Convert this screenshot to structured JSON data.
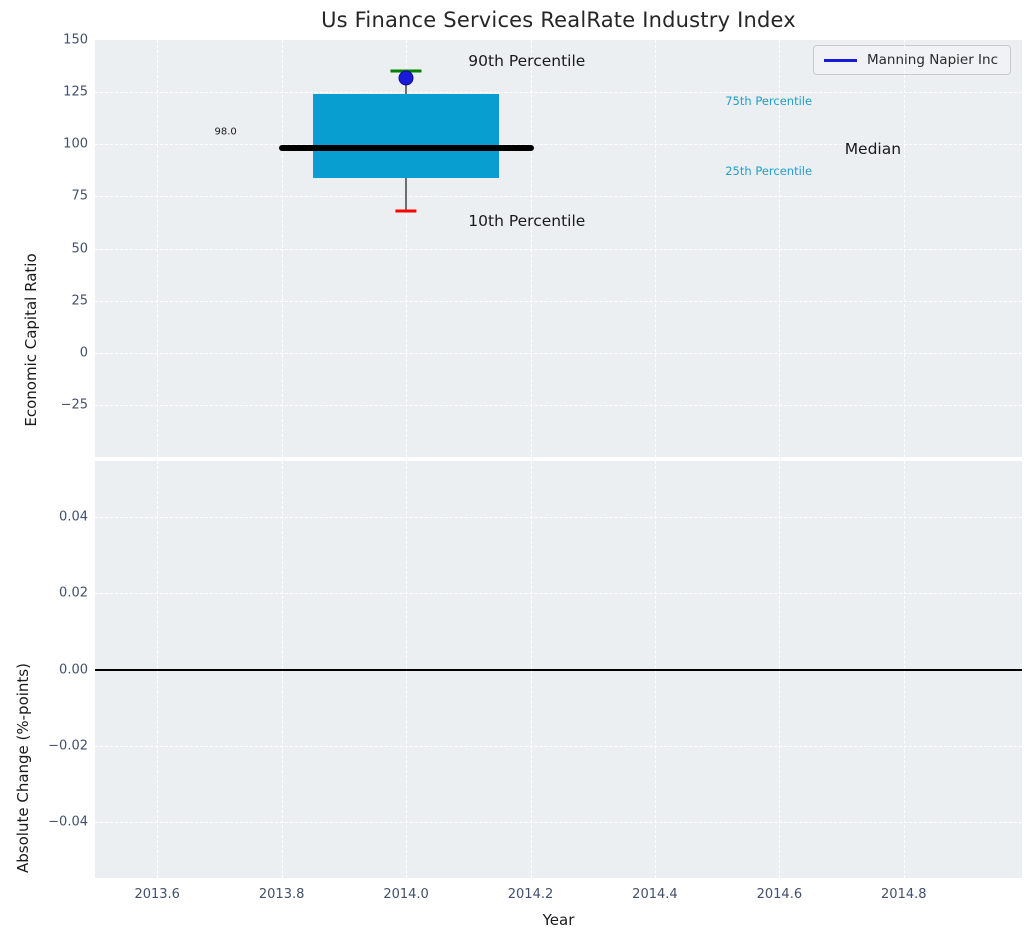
{
  "title": "Us Finance Services RealRate Industry Index",
  "legend": {
    "label": "Manning Napier Inc",
    "line_color": "#1a1ad9"
  },
  "colors": {
    "axes_background": "#eceff1",
    "grid": "#ffffff",
    "tick_text": "#42506b",
    "box_fill": "#089ecf",
    "median_line": "#000000",
    "whisker": "#6e6e6e",
    "p90_cap": "#008000",
    "p10_cap": "#ff0000",
    "company_marker": "#1a1ad9",
    "percentile_text": "#1f9dcd",
    "annotation_text": "#1a1a1a"
  },
  "chart_data": [
    {
      "type": "box-timeseries",
      "subplot": "top",
      "title": "Us Finance Services RealRate Industry Index",
      "ylabel": "Economic Capital Ratio",
      "xlabel": "",
      "grid": true,
      "legend_position": "upper right",
      "xlim": [
        2013.5,
        2014.99
      ],
      "ylim": [
        -50,
        150
      ],
      "xticks": {
        "values": [
          2013.6,
          2013.8,
          2014.0,
          2014.2,
          2014.4,
          2014.6,
          2014.8
        ],
        "labels": [
          "2013.6",
          "2013.8",
          "2014.0",
          "2014.2",
          "2014.4",
          "2014.6",
          "2014.8"
        ]
      },
      "yticks": {
        "values": [
          150,
          125,
          100,
          75,
          50,
          25,
          0,
          -25
        ],
        "labels": [
          "150",
          "125",
          "100",
          "75",
          "50",
          "25",
          "0",
          "−25"
        ]
      },
      "box": {
        "x": 2014.0,
        "p90": 135,
        "p75": 124,
        "median": 98,
        "p25": 84,
        "p10": 68,
        "box_halfwidth": 0.15,
        "median_halfwidth": 0.205,
        "p90_cap_halfwidth": 0.025,
        "p10_cap_halfwidth": 0.017
      },
      "series": [
        {
          "name": "Manning Napier Inc",
          "type": "scatter",
          "x": [
            2014.0
          ],
          "y": [
            132
          ]
        }
      ],
      "annotations": [
        {
          "text": "90th Percentile",
          "x": 2014.1,
          "y": 139.8,
          "size": 15.5,
          "color": "#1a1a1a",
          "anchor": "left"
        },
        {
          "text": "10th Percentile",
          "x": 2014.1,
          "y": 63.0,
          "size": 15.5,
          "color": "#1a1a1a",
          "anchor": "left"
        },
        {
          "text": "Median",
          "x": 2014.705,
          "y": 97.8,
          "size": 15.5,
          "color": "#1a1a1a",
          "anchor": "left"
        },
        {
          "text": "75th Percentile",
          "x": 2014.513,
          "y": 120.8,
          "size": 11.5,
          "color": "#1f9dcd",
          "anchor": "left"
        },
        {
          "text": "25th Percentile",
          "x": 2014.513,
          "y": 87.0,
          "size": 11.5,
          "color": "#1f9dcd",
          "anchor": "left"
        },
        {
          "text": "98.0",
          "x": 2013.71,
          "y": 106.0,
          "size": 10,
          "color": "#1a1a1a",
          "anchor": "center"
        }
      ]
    },
    {
      "type": "line",
      "subplot": "bottom",
      "ylabel": "Absolute Change (%-points)",
      "xlabel": "Year",
      "grid": true,
      "xlim": [
        2013.5,
        2014.99
      ],
      "ylim": [
        -0.0546,
        0.0546
      ],
      "xticks": {
        "values": [
          2013.6,
          2013.8,
          2014.0,
          2014.2,
          2014.4,
          2014.6,
          2014.8
        ],
        "labels": [
          "2013.6",
          "2013.8",
          "2014.0",
          "2014.2",
          "2014.4",
          "2014.6",
          "2014.8"
        ]
      },
      "yticks": {
        "values": [
          0.04,
          0.02,
          0.0,
          -0.02,
          -0.04
        ],
        "labels": [
          "0.04",
          "0.02",
          "0.00",
          "−0.02",
          "−0.04"
        ]
      },
      "zero_line": 0.0,
      "series": []
    }
  ]
}
